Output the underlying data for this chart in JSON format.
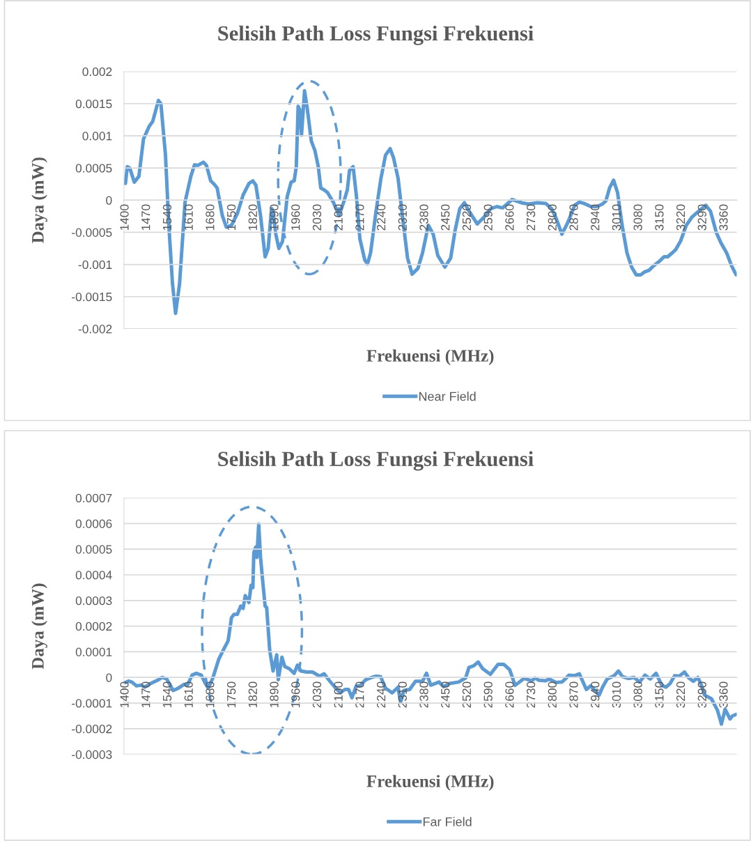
{
  "chart_data": [
    {
      "type": "line",
      "title": "Selisih Path Loss Fungsi Frekuensi",
      "xlabel": "Frekuensi (MHz)",
      "ylabel": "Daya (mW)",
      "x": [
        1400,
        1406,
        1414,
        1429,
        1444,
        1459,
        1478,
        1489,
        1508,
        1516,
        1531,
        1542,
        1554,
        1564,
        1577,
        1595,
        1614,
        1626,
        1637,
        1655,
        1665,
        1679,
        1690,
        1700,
        1717,
        1730,
        1747,
        1766,
        1785,
        1804,
        1817,
        1827,
        1842,
        1857,
        1867,
        1878,
        1883,
        1892,
        1902,
        1914,
        1929,
        1942,
        1952,
        1959,
        1965,
        1970,
        1976,
        1986,
        1995,
        2008,
        2020,
        2031,
        2039,
        2050,
        2061,
        2080,
        2099,
        2114,
        2126,
        2133,
        2145,
        2156,
        2167,
        2183,
        2192,
        2202,
        2220,
        2236,
        2251,
        2266,
        2277,
        2292,
        2308,
        2323,
        2338,
        2357,
        2372,
        2391,
        2407,
        2422,
        2445,
        2464,
        2479,
        2494,
        2509,
        2524,
        2551,
        2574,
        2596,
        2615,
        2634,
        2665,
        2695,
        2718,
        2748,
        2775,
        2794,
        2809,
        2828,
        2847,
        2870,
        2885,
        2900,
        2923,
        2942,
        2961,
        2972,
        2984,
        2997,
        3010,
        3025,
        3041,
        3056,
        3071,
        3086,
        3097,
        3113,
        3128,
        3147,
        3162,
        3174,
        3189,
        3200,
        3216,
        3235,
        3254,
        3276,
        3299,
        3314,
        3333,
        3348,
        3367,
        3383,
        3398
      ],
      "series": [
        {
          "name": "Near Field",
          "color": "#5b9bd5",
          "values": [
            0.00026,
            0.00052,
            0.0005,
            0.00028,
            0.00037,
            0.00095,
            0.00115,
            0.00122,
            0.00155,
            0.0015,
            0.0007,
            -0.00039,
            -0.0013,
            -0.00176,
            -0.0013,
            -3e-05,
            0.00037,
            0.00055,
            0.00054,
            0.00059,
            0.00054,
            0.0003,
            0.00025,
            0.00019,
            -0.00024,
            -0.00042,
            -0.00039,
            -0.00021,
            8e-05,
            0.00026,
            0.0003,
            0.00023,
            -0.00024,
            -0.00088,
            -0.00075,
            -0.00013,
            -0.00017,
            -0.00053,
            -0.00075,
            -0.00064,
            5e-05,
            0.00028,
            0.0003,
            0.00052,
            0.00146,
            0.00141,
            0.00101,
            0.0017,
            0.00142,
            0.00092,
            0.00077,
            0.00052,
            0.00019,
            0.00016,
            0.00012,
            -3e-05,
            -0.00024,
            -3e-05,
            0.00016,
            0.00046,
            0.00052,
            5e-05,
            -0.0006,
            -0.00093,
            -0.00099,
            -0.00082,
            -0.00017,
            0.00034,
            0.0007,
            0.0008,
            0.00066,
            0.00034,
            -0.00032,
            -0.0009,
            -0.00115,
            -0.00106,
            -0.00082,
            -0.00039,
            -0.00053,
            -0.00086,
            -0.00104,
            -0.0009,
            -0.00046,
            -0.00013,
            -4e-05,
            -0.00017,
            -0.00037,
            -0.00026,
            -0.00013,
            -0.0001,
            -0.00012,
            1e-05,
            -4e-05,
            -6e-05,
            -4e-05,
            -5e-05,
            -0.00013,
            -0.00028,
            -0.00053,
            -0.00035,
            -8e-05,
            -3e-05,
            -5e-05,
            -0.0001,
            -0.0001,
            -6e-05,
            -1e-05,
            0.00019,
            0.00031,
            0.00012,
            -0.00039,
            -0.00082,
            -0.00104,
            -0.00116,
            -0.00116,
            -0.00112,
            -0.00109,
            -0.00102,
            -0.00095,
            -0.00088,
            -0.00088,
            -0.00082,
            -0.00077,
            -0.00064,
            -0.00039,
            -0.00026,
            -0.00017,
            -8e-05,
            -0.00017,
            -0.0005,
            -0.00066,
            -0.00082,
            -0.00102,
            -0.00116
          ]
        }
      ],
      "xlim": [
        1395,
        3400
      ],
      "xticks": [
        1400,
        1470,
        1540,
        1610,
        1680,
        1750,
        1820,
        1890,
        1960,
        2030,
        2100,
        2170,
        2240,
        2310,
        2380,
        2450,
        2520,
        2590,
        2660,
        2730,
        2800,
        2870,
        2940,
        3010,
        3080,
        3150,
        3220,
        3290,
        3360
      ],
      "ylim": [
        -0.002,
        0.002
      ],
      "yticks": [
        -0.002,
        -0.0015,
        -0.001,
        -0.0005,
        0,
        0.0005,
        0.001,
        0.0015,
        0.002
      ],
      "grid": "y",
      "legend": "bottom"
    },
    {
      "type": "line",
      "title": "Selisih Path Loss Fungsi Frekuensi",
      "xlabel": "Frekuensi (MHz)",
      "ylabel": "Daya (mW)",
      "x": [
        1400,
        1410,
        1421,
        1436,
        1452,
        1463,
        1482,
        1505,
        1520,
        1535,
        1556,
        1573,
        1592,
        1603,
        1618,
        1632,
        1648,
        1660,
        1671,
        1686,
        1705,
        1720,
        1736,
        1747,
        1755,
        1766,
        1777,
        1785,
        1792,
        1804,
        1811,
        1817,
        1820,
        1826,
        1830,
        1836,
        1842,
        1849,
        1857,
        1862,
        1872,
        1883,
        1895,
        1900,
        1912,
        1921,
        1936,
        1952,
        1963,
        1974,
        1993,
        2012,
        2035,
        2050,
        2069,
        2088,
        2103,
        2118,
        2130,
        2141,
        2155,
        2167,
        2186,
        2201,
        2220,
        2235,
        2251,
        2273,
        2292,
        2300,
        2311,
        2330,
        2349,
        2372,
        2385,
        2399,
        2426,
        2441,
        2460,
        2490,
        2513,
        2524,
        2539,
        2554,
        2569,
        2594,
        2619,
        2638,
        2657,
        2675,
        2704,
        2729,
        2741,
        2752,
        2775,
        2786,
        2809,
        2828,
        2839,
        2851,
        2870,
        2885,
        2908,
        2922,
        2950,
        2961,
        2976,
        2999,
        3013,
        3026,
        3045,
        3064,
        3082,
        3100,
        3117,
        3136,
        3155,
        3168,
        3182,
        3197,
        3212,
        3229,
        3243,
        3258,
        3273,
        3284,
        3295,
        3317,
        3337,
        3350,
        3362,
        3378,
        3386,
        3398
      ],
      "series": [
        {
          "name": "Far Field",
          "color": "#5b9bd5",
          "values": [
            -2e-05,
            -1.4e-05,
            -1.8e-05,
            -3.3e-05,
            -3e-05,
            -3.8e-05,
            -2.4e-05,
            -1.1e-05,
            0,
            -6e-06,
            -5.1e-05,
            -4.2e-05,
            -2.7e-05,
            -3e-05,
            9e-06,
            1.6e-05,
            9e-06,
            -2e-05,
            -4.2e-05,
            -2e-06,
            7e-05,
            0.000106,
            0.000143,
            0.000233,
            0.000246,
            0.000246,
            0.000278,
            0.000269,
            0.000319,
            0.000292,
            0.000359,
            0.00035,
            0.000486,
            0.000508,
            0.000468,
            0.000598,
            0.000468,
            0.000377,
            0.000278,
            0.000273,
            0.000106,
            2.5e-05,
            8.8e-05,
            -9e-06,
            7.9e-05,
            4.3e-05,
            3.4e-05,
            1.6e-05,
            4.8e-05,
            2.5e-05,
            2.1e-05,
            2.1e-05,
            5e-06,
            1.4e-05,
            -1.5e-05,
            -4.2e-05,
            -6e-05,
            -4.7e-05,
            -4.7e-05,
            -7.9e-05,
            -3.3e-05,
            -3.3e-05,
            -9e-06,
            -2e-06,
            5e-06,
            3e-06,
            -4.2e-05,
            -6e-05,
            -3.8e-05,
            -9.7e-05,
            -5.1e-05,
            -4.7e-05,
            -1.5e-05,
            -1.5e-05,
            1.6e-05,
            -3e-05,
            -1.8e-05,
            -3.6e-05,
            -2.4e-05,
            -1.8e-05,
            -2e-06,
            3.9e-05,
            4.5e-05,
            6e-05,
            3.4e-05,
            1.2e-05,
            5.1e-05,
            5.1e-05,
            3e-05,
            -3.1e-05,
            -4e-06,
            -1.3e-05,
            -2e-06,
            -1.1e-05,
            -1.3e-05,
            -6e-06,
            -2e-05,
            -1.8e-05,
            -6e-06,
            9e-06,
            7e-06,
            1.4e-05,
            -4.7e-05,
            -3.3e-05,
            -6.9e-05,
            -3.8e-05,
            -6e-06,
            7e-06,
            2.5e-05,
            3e-06,
            -4e-06,
            0,
            -1.8e-05,
            9e-06,
            -6e-06,
            1.6e-05,
            -3.1e-05,
            -3.8e-05,
            -2.4e-05,
            7e-06,
            5e-06,
            2.1e-05,
            -2e-06,
            -1.5e-05,
            0,
            -2.9e-05,
            -6.9e-05,
            -8.3e-05,
            -0.000128,
            -0.000182,
            -0.000124,
            -0.000162,
            -0.00015,
            -0.000144
          ]
        }
      ],
      "xlim": [
        1395,
        3400
      ],
      "xticks": [
        1400,
        1470,
        1540,
        1610,
        1680,
        1750,
        1820,
        1890,
        1960,
        2030,
        2100,
        2170,
        2240,
        2310,
        2380,
        2450,
        2520,
        2590,
        2660,
        2730,
        2800,
        2870,
        2940,
        3010,
        3080,
        3150,
        3220,
        3290,
        3360
      ],
      "ylim": [
        -0.0003,
        0.0007
      ],
      "yticks": [
        -0.0003,
        -0.0002,
        -0.0001,
        0,
        0.0001,
        0.0002,
        0.0003,
        0.0004,
        0.0005,
        0.0006,
        0.0007
      ],
      "grid": "y",
      "legend": "bottom"
    }
  ]
}
